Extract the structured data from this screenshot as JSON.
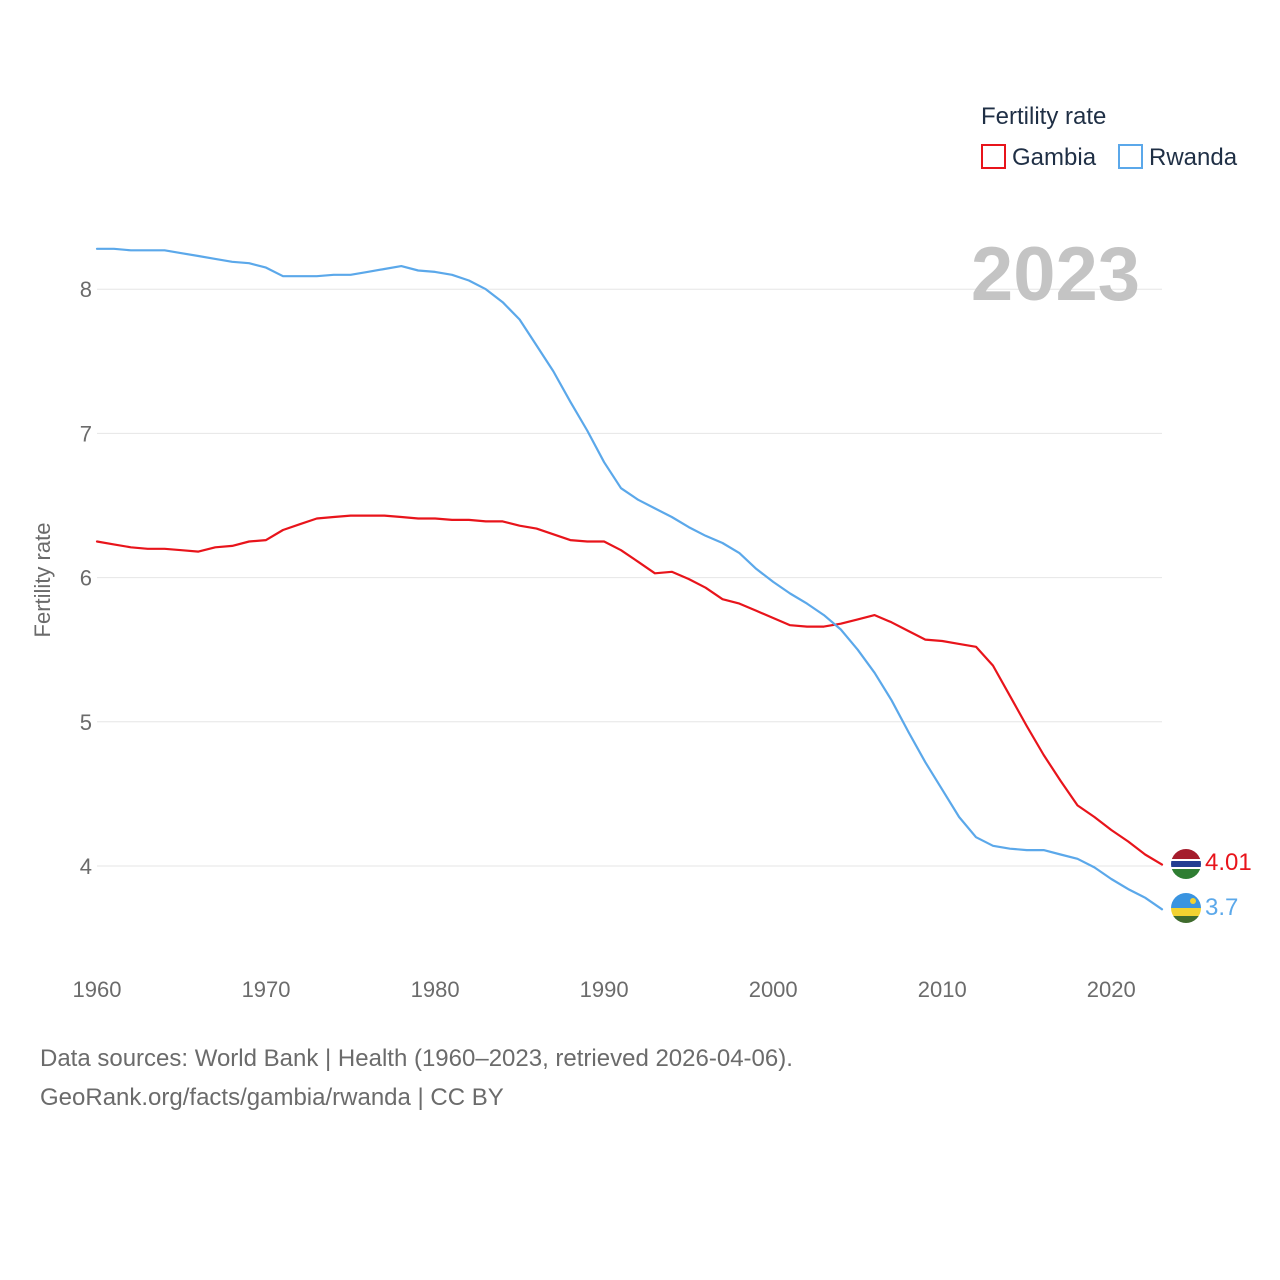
{
  "chart_data": {
    "type": "line",
    "year_label": "2023",
    "ylabel": "Fertility rate",
    "xlabel": "",
    "xlim": [
      1960,
      2023
    ],
    "ylim": [
      3.45,
      8.55
    ],
    "y_ticks": [
      4,
      5,
      6,
      7,
      8
    ],
    "x_ticks": [
      1960,
      1970,
      1980,
      1990,
      2000,
      2010,
      2020
    ],
    "legend": {
      "title": "Fertility rate",
      "placement": "top-right"
    },
    "x": [
      1960,
      1961,
      1962,
      1963,
      1964,
      1965,
      1966,
      1967,
      1968,
      1969,
      1970,
      1971,
      1972,
      1973,
      1974,
      1975,
      1976,
      1977,
      1978,
      1979,
      1980,
      1981,
      1982,
      1983,
      1984,
      1985,
      1986,
      1987,
      1988,
      1989,
      1990,
      1991,
      1992,
      1993,
      1994,
      1995,
      1996,
      1997,
      1998,
      1999,
      2000,
      2001,
      2002,
      2003,
      2004,
      2005,
      2006,
      2007,
      2008,
      2009,
      2010,
      2011,
      2012,
      2013,
      2014,
      2015,
      2016,
      2017,
      2018,
      2019,
      2020,
      2021,
      2022,
      2023
    ],
    "series": [
      {
        "name": "Gambia",
        "color": "#e8141b",
        "end_label": "4.01",
        "flag": "gambia-flag",
        "values": [
          6.25,
          6.23,
          6.21,
          6.2,
          6.2,
          6.19,
          6.18,
          6.21,
          6.22,
          6.25,
          6.26,
          6.33,
          6.37,
          6.41,
          6.42,
          6.43,
          6.43,
          6.43,
          6.42,
          6.41,
          6.41,
          6.4,
          6.4,
          6.39,
          6.39,
          6.36,
          6.34,
          6.3,
          6.26,
          6.25,
          6.25,
          6.19,
          6.11,
          6.03,
          6.04,
          5.99,
          5.93,
          5.85,
          5.82,
          5.77,
          5.72,
          5.67,
          5.66,
          5.66,
          5.68,
          5.71,
          5.74,
          5.69,
          5.63,
          5.57,
          5.56,
          5.54,
          5.52,
          5.39,
          5.18,
          4.97,
          4.77,
          4.59,
          4.42,
          4.34,
          4.25,
          4.17,
          4.08,
          4.01
        ]
      },
      {
        "name": "Rwanda",
        "color": "#5ba8ea",
        "end_label": "3.7",
        "flag": "rwanda-flag",
        "values": [
          8.28,
          8.28,
          8.27,
          8.27,
          8.27,
          8.25,
          8.23,
          8.21,
          8.19,
          8.18,
          8.15,
          8.09,
          8.09,
          8.09,
          8.1,
          8.1,
          8.12,
          8.14,
          8.16,
          8.13,
          8.12,
          8.1,
          8.06,
          8.0,
          7.91,
          7.79,
          7.61,
          7.43,
          7.22,
          7.02,
          6.8,
          6.62,
          6.54,
          6.48,
          6.42,
          6.35,
          6.29,
          6.24,
          6.17,
          6.06,
          5.97,
          5.89,
          5.82,
          5.74,
          5.64,
          5.5,
          5.34,
          5.15,
          4.93,
          4.72,
          4.53,
          4.34,
          4.2,
          4.14,
          4.12,
          4.11,
          4.11,
          4.08,
          4.05,
          3.99,
          3.91,
          3.84,
          3.78,
          3.7
        ]
      }
    ]
  },
  "footer": {
    "sources": "Data sources: World Bank | Health (1960–2023, retrieved 2026-04-06).",
    "credit": "GeoRank.org/facts/gambia/rwanda | CC BY"
  }
}
